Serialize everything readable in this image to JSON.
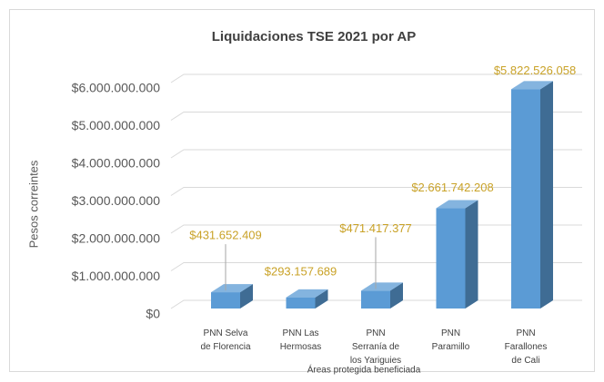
{
  "chart_data": {
    "type": "bar3d",
    "title": "Liquidaciones TSE 2021 por AP",
    "y_label": "Pesos correintes",
    "x_label": "Áreas protegida  beneficiada",
    "categories": [
      [
        "PNN  Selva",
        "de Florencia"
      ],
      [
        "PNN  Las",
        "Hermosas"
      ],
      [
        "PNN",
        "Serranía de",
        "los Yariguies"
      ],
      [
        "PNN",
        "Paramillo"
      ],
      [
        "PNN",
        "Farallones",
        "de Cali"
      ]
    ],
    "values": [
      431652409,
      293157689,
      471417377,
      2661742208,
      5822526058
    ],
    "value_labels": [
      "$431.652.409",
      "$293.157.689",
      "$471.417.377",
      "$2.661.742.208",
      "$5.822.526.058"
    ],
    "color": "#5b9bd5",
    "ylim": [
      0,
      6000000000
    ],
    "yticks": [
      {
        "value": 0,
        "label": "$0"
      },
      {
        "value": 1000000000,
        "label": "$1.000.000.000"
      },
      {
        "value": 2000000000,
        "label": "$2.000.000.000"
      },
      {
        "value": 3000000000,
        "label": "$3.000.000.000"
      },
      {
        "value": 4000000000,
        "label": "$4.000.000.000"
      },
      {
        "value": 5000000000,
        "label": "$5.000.000.000"
      },
      {
        "value": 6000000000,
        "label": "$6.000.000.000"
      }
    ],
    "grid": true
  }
}
